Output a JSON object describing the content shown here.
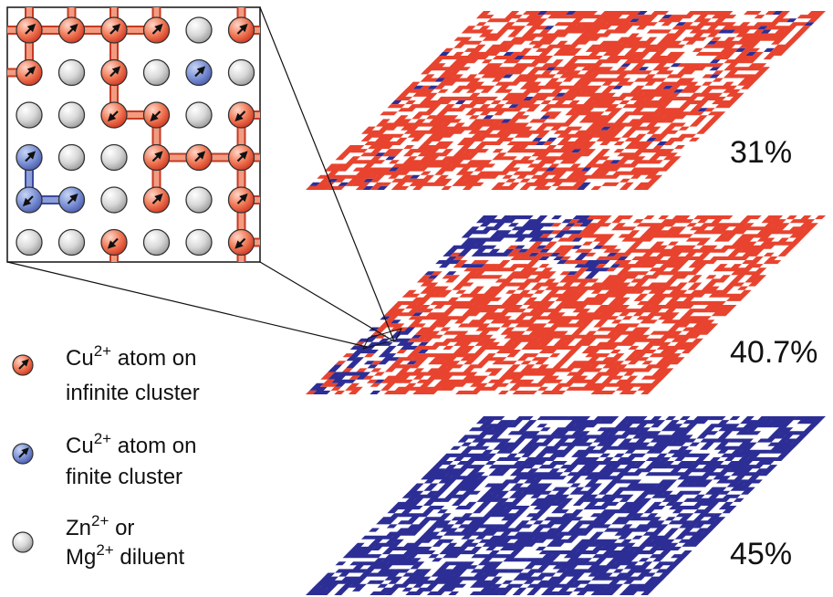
{
  "colors": {
    "infinite_cluster": "#e8432e",
    "finite_cluster": "#2d2e95",
    "diluent": "#d0d0d0",
    "background": "#ffffff"
  },
  "grid": {
    "rows": [
      [
        "I",
        "I",
        "I",
        "I",
        "D",
        "I"
      ],
      [
        "I",
        "D",
        "I",
        "D",
        "F",
        "D"
      ],
      [
        "D",
        "D",
        "I",
        "I",
        "D",
        "I"
      ],
      [
        "F",
        "D",
        "D",
        "I",
        "I",
        "I"
      ],
      [
        "F",
        "F",
        "D",
        "I",
        "D",
        "I"
      ],
      [
        "D",
        "D",
        "I",
        "D",
        "D",
        "I"
      ]
    ]
  },
  "layers": [
    {
      "label": "31%",
      "concentration": 0.31,
      "red_fraction": 0.82
    },
    {
      "label": "40.7%",
      "concentration": 0.407,
      "red_fraction": 0.55
    },
    {
      "label": "45%",
      "concentration": 0.45,
      "red_fraction": 0.0
    }
  ],
  "legend": [
    {
      "kind": "infinite",
      "lines": [
        {
          "base": "Cu",
          "sup": "2+",
          "rest": " atom on"
        },
        {
          "base": "infinite cluster",
          "sup": "",
          "rest": ""
        }
      ]
    },
    {
      "kind": "finite",
      "lines": [
        {
          "base": "Cu",
          "sup": "2+",
          "rest": " atom on"
        },
        {
          "base": "finite cluster",
          "sup": "",
          "rest": ""
        }
      ]
    },
    {
      "kind": "diluent",
      "lines": [
        {
          "base": "Zn",
          "sup": "2+",
          "rest": " or"
        },
        {
          "base": "Mg",
          "sup": "2+",
          "rest": " diluent"
        }
      ]
    }
  ]
}
